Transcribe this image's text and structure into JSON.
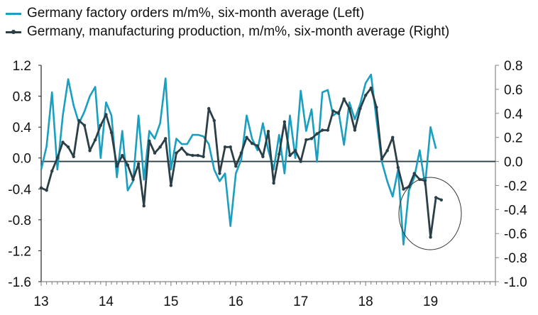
{
  "chart_data": {
    "type": "line",
    "title": "",
    "xlabel": "",
    "ylabel_left": "",
    "ylabel_right": "",
    "x_start": "2013-01",
    "x_step": "month",
    "x_ticks": [
      "13",
      "14",
      "15",
      "16",
      "17",
      "18",
      "19"
    ],
    "x_range_years": [
      13,
      20
    ],
    "y_left": {
      "range": [
        -1.6,
        1.2
      ],
      "ticks": [
        "1.2",
        "0.8",
        "0.4",
        "0.0",
        "-0.4",
        "-0.8",
        "-1.2",
        "-1.6"
      ],
      "tick_values": [
        1.2,
        0.8,
        0.4,
        0.0,
        -0.4,
        -0.8,
        -1.2,
        -1.6
      ]
    },
    "y_right": {
      "range": [
        -1.0,
        0.8
      ],
      "ticks": [
        "0.8",
        "0.6",
        "0.4",
        "0.2",
        "0.0",
        "-0.2",
        "-0.4",
        "-0.6",
        "-0.8",
        "-1.0"
      ],
      "tick_values": [
        0.8,
        0.6,
        0.4,
        0.2,
        0.0,
        -0.2,
        -0.4,
        -0.6,
        -0.8,
        -1.0
      ]
    },
    "grid": false,
    "legend_position": "top-left",
    "zero_line": true,
    "annotation": {
      "type": "ellipse",
      "label": "",
      "highlights": "2018 Q4 production drop"
    },
    "series": [
      {
        "name": "Germany factory orders m/m%, six-month average (Left)",
        "axis": "left",
        "color": "#1a9fc0",
        "markers": false,
        "values": [
          -0.15,
          0.15,
          0.85,
          -0.15,
          0.55,
          1.02,
          0.68,
          0.45,
          0.6,
          0.8,
          0.92,
          0.0,
          0.72,
          0.55,
          -0.25,
          0.35,
          -0.42,
          -0.3,
          0.55,
          -0.28,
          0.35,
          0.25,
          0.45,
          1.03,
          -0.15,
          0.25,
          0.18,
          0.18,
          0.3,
          0.3,
          0.28,
          0.18,
          -0.15,
          -0.3,
          -0.2,
          -0.88,
          -0.2,
          -0.02,
          0.55,
          0.25,
          0.1,
          0.45,
          0.1,
          -0.15,
          0.3,
          -0.2,
          0.55,
          0.0,
          0.87,
          0.35,
          0.63,
          -0.05,
          0.85,
          0.88,
          0.55,
          0.6,
          0.17,
          0.72,
          0.5,
          0.7,
          0.97,
          1.08,
          0.5,
          -0.05,
          -0.3,
          -0.5,
          -0.15,
          -1.12,
          -0.42,
          -0.25,
          0.1,
          -0.35,
          0.4,
          0.12
        ]
      },
      {
        "name": "Germany, manufacturing production, m/m%, six-month average (Right)",
        "axis": "right",
        "color": "#2b3f47",
        "markers": true,
        "values": [
          -0.22,
          -0.24,
          -0.08,
          0.03,
          0.16,
          0.12,
          0.04,
          0.34,
          0.3,
          0.09,
          0.18,
          0.3,
          0.39,
          0.24,
          -0.04,
          0.05,
          -0.03,
          -0.15,
          -0.02,
          -0.37,
          0.17,
          0.07,
          0.12,
          0.19,
          -0.2,
          0.07,
          0.11,
          0.06,
          0.05,
          0.05,
          0.04,
          0.44,
          0.34,
          -0.1,
          0.12,
          0.12,
          -0.04,
          0.07,
          0.2,
          0.15,
          0.13,
          0.04,
          0.25,
          -0.18,
          0.06,
          0.33,
          0.05,
          0.09,
          0.0,
          0.18,
          0.19,
          0.23,
          0.26,
          0.26,
          0.42,
          0.4,
          0.52,
          0.44,
          0.26,
          0.44,
          0.55,
          0.61,
          0.45,
          0.02,
          0.09,
          0.2,
          -0.05,
          -0.23,
          -0.21,
          -0.1,
          -0.15,
          -0.16,
          -0.63,
          -0.3,
          -0.32
        ]
      }
    ]
  }
}
